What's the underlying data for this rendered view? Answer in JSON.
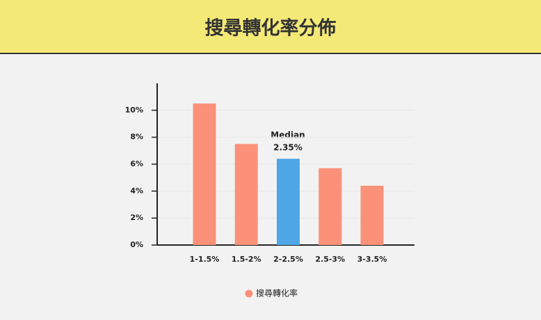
{
  "chart_data": {
    "type": "bar",
    "title": "搜尋轉化率分佈",
    "categories": [
      "1-1.5%",
      "1.5-2%",
      "2-2.5%",
      "2.5-3%",
      "3-3.5%"
    ],
    "series": [
      {
        "name": "搜尋轉化率",
        "color": "#fb9179",
        "colors": [
          "#fb9179",
          "#fb9179",
          "#4fa6e6",
          "#fb9179",
          "#fb9179"
        ],
        "values": [
          10.5,
          7.5,
          6.4,
          5.7,
          4.4
        ]
      }
    ],
    "annotations": [
      "Median",
      "2.35%"
    ],
    "ylim": [
      0,
      12
    ],
    "yticks": [
      {
        "value": 0,
        "label": "0%"
      },
      {
        "value": 2,
        "label": "2%"
      },
      {
        "value": 4,
        "label": "4%"
      },
      {
        "value": 6,
        "label": "6%"
      },
      {
        "value": 8,
        "label": "8%"
      },
      {
        "value": 10,
        "label": "10%"
      }
    ],
    "grid": true
  }
}
